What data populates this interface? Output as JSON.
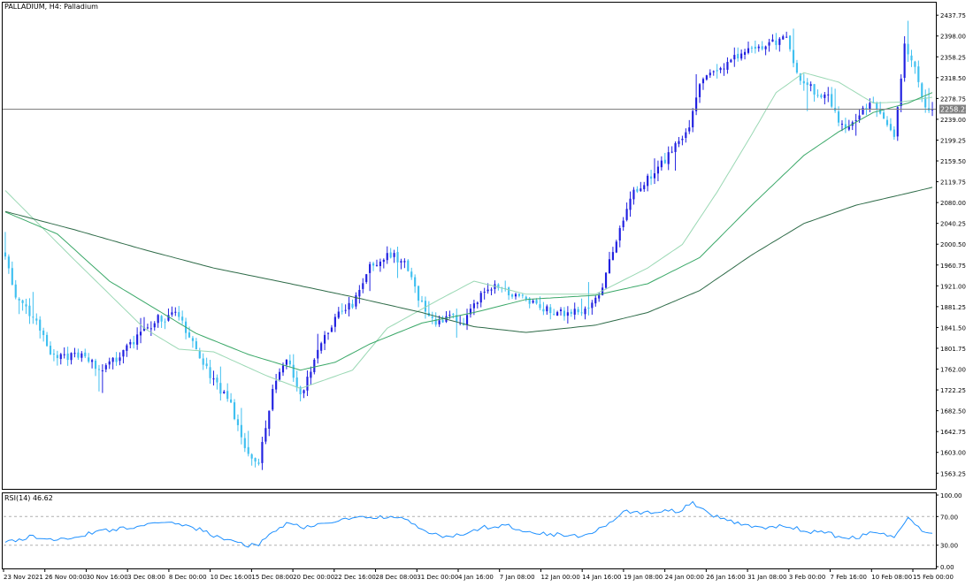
{
  "colors": {
    "background": "#ffffff",
    "frame": "#000000",
    "bull": "#2020e0",
    "bear": "#40c0f0",
    "ma_fast": "#9ad8b4",
    "ma_mid": "#3aa868",
    "ma_slow": "#2e6b48",
    "rsi": "#1e90ff",
    "price_line": "#808080",
    "price_tag_bg": "#808080",
    "price_tag_text": "#ffffff",
    "level_line": "#b0b0b0"
  },
  "chart_data": [
    {
      "type": "candlestick",
      "title": "PALLADIUM, H4:  Palladium",
      "ylim": [
        1535,
        2460
      ],
      "y_ticks": [
        "2437.75",
        "2398.00",
        "2358.25",
        "2318.50",
        "2278.75",
        "2239.00",
        "2199.25",
        "2159.50",
        "2119.75",
        "2080.00",
        "2040.25",
        "2000.50",
        "1960.75",
        "1921.00",
        "1881.25",
        "1841.50",
        "1801.75",
        "1762.00",
        "1722.25",
        "1682.50",
        "1642.75",
        "1603.00",
        "1563.25"
      ],
      "current_price": "2258.25",
      "x_labels": [
        "23 Nov 2021",
        "26 Nov 00:00",
        "30 Nov 16:00",
        "3 Dec 08:00",
        "8 Dec 00:00",
        "10 Dec 16:00",
        "15 Dec 08:00",
        "20 Dec 00:00",
        "22 Dec 16:00",
        "28 Dec 08:00",
        "31 Dec 00:00",
        "4 Jan 16:00",
        "7 Jan 08:00",
        "12 Jan 00:00",
        "14 Jan 16:00",
        "19 Jan 08:00",
        "24 Jan 00:00",
        "26 Jan 16:00",
        "31 Jan 08:00",
        "3 Feb 00:00",
        "7 Feb 16:00",
        "10 Feb 08:00",
        "15 Feb 00:00"
      ],
      "price_anchors": [
        [
          0,
          1985
        ],
        [
          3,
          1895
        ],
        [
          8,
          1862
        ],
        [
          14,
          1782
        ],
        [
          22,
          1790
        ],
        [
          28,
          1755
        ],
        [
          36,
          1810
        ],
        [
          44,
          1858
        ],
        [
          50,
          1865
        ],
        [
          55,
          1795
        ],
        [
          60,
          1742
        ],
        [
          65,
          1692
        ],
        [
          70,
          1598
        ],
        [
          73,
          1583
        ],
        [
          77,
          1720
        ],
        [
          81,
          1785
        ],
        [
          85,
          1708
        ],
        [
          90,
          1796
        ],
        [
          95,
          1862
        ],
        [
          100,
          1885
        ],
        [
          105,
          1955
        ],
        [
          110,
          1982
        ],
        [
          115,
          1968
        ],
        [
          119,
          1900
        ],
        [
          124,
          1848
        ],
        [
          128,
          1862
        ],
        [
          132,
          1848
        ],
        [
          137,
          1902
        ],
        [
          142,
          1922
        ],
        [
          147,
          1903
        ],
        [
          152,
          1890
        ],
        [
          157,
          1872
        ],
        [
          162,
          1869
        ],
        [
          167,
          1879
        ],
        [
          171,
          1903
        ],
        [
          176,
          2010
        ],
        [
          180,
          2090
        ],
        [
          186,
          2130
        ],
        [
          191,
          2170
        ],
        [
          197,
          2222
        ],
        [
          200,
          2310
        ],
        [
          205,
          2328
        ],
        [
          210,
          2362
        ],
        [
          215,
          2368
        ],
        [
          220,
          2382
        ],
        [
          225,
          2398
        ],
        [
          228,
          2325
        ],
        [
          233,
          2292
        ],
        [
          237,
          2280
        ],
        [
          241,
          2226
        ],
        [
          245,
          2239
        ],
        [
          249,
          2274
        ],
        [
          253,
          2245
        ],
        [
          256,
          2212
        ],
        [
          259,
          2380
        ],
        [
          262,
          2342
        ],
        [
          265,
          2258
        ],
        [
          267,
          2258.25
        ]
      ],
      "moving_averages": [
        {
          "key": "ma_fast",
          "values": [
            [
              0,
              2103
            ],
            [
              20,
              1970
            ],
            [
              40,
              1840
            ],
            [
              50,
              1800
            ],
            [
              60,
              1795
            ],
            [
              75,
              1750
            ],
            [
              85,
              1725
            ],
            [
              100,
              1760
            ],
            [
              110,
              1840
            ],
            [
              125,
              1895
            ],
            [
              135,
              1930
            ],
            [
              150,
              1905
            ],
            [
              170,
              1905
            ],
            [
              185,
              1955
            ],
            [
              195,
              2000
            ],
            [
              205,
              2100
            ],
            [
              215,
              2210
            ],
            [
              222,
              2290
            ],
            [
              230,
              2328
            ],
            [
              240,
              2310
            ],
            [
              250,
              2270
            ],
            [
              258,
              2272
            ],
            [
              267,
              2281
            ]
          ]
        },
        {
          "key": "ma_mid",
          "values": [
            [
              0,
              2062
            ],
            [
              15,
              2020
            ],
            [
              30,
              1930
            ],
            [
              45,
              1870
            ],
            [
              55,
              1830
            ],
            [
              70,
              1790
            ],
            [
              85,
              1760
            ],
            [
              95,
              1775
            ],
            [
              105,
              1810
            ],
            [
              120,
              1850
            ],
            [
              135,
              1870
            ],
            [
              150,
              1895
            ],
            [
              170,
              1903
            ],
            [
              185,
              1925
            ],
            [
              200,
              1975
            ],
            [
              215,
              2075
            ],
            [
              230,
              2170
            ],
            [
              240,
              2215
            ],
            [
              250,
              2252
            ],
            [
              260,
              2270
            ],
            [
              267,
              2290
            ]
          ]
        },
        {
          "key": "ma_slow",
          "values": [
            [
              0,
              2063
            ],
            [
              20,
              2028
            ],
            [
              40,
              1990
            ],
            [
              60,
              1955
            ],
            [
              80,
              1928
            ],
            [
              100,
              1900
            ],
            [
              120,
              1870
            ],
            [
              135,
              1843
            ],
            [
              150,
              1832
            ],
            [
              170,
              1846
            ],
            [
              185,
              1870
            ],
            [
              200,
              1912
            ],
            [
              215,
              1980
            ],
            [
              230,
              2040
            ],
            [
              245,
              2075
            ],
            [
              260,
              2098
            ],
            [
              267,
              2109
            ]
          ]
        }
      ]
    },
    {
      "type": "line",
      "title": "RSI(14) 46.62",
      "ylim": [
        0,
        100
      ],
      "y_ticks": [
        "100.00",
        "70.00",
        "30.00",
        "0.00"
      ],
      "levels": [
        30,
        70
      ],
      "anchors": [
        [
          0,
          34
        ],
        [
          8,
          42
        ],
        [
          15,
          38
        ],
        [
          22,
          44
        ],
        [
          30,
          51
        ],
        [
          40,
          58
        ],
        [
          50,
          61
        ],
        [
          56,
          52
        ],
        [
          62,
          39
        ],
        [
          70,
          30
        ],
        [
          73,
          30
        ],
        [
          77,
          50
        ],
        [
          82,
          61
        ],
        [
          86,
          53
        ],
        [
          92,
          62
        ],
        [
          100,
          67
        ],
        [
          110,
          70
        ],
        [
          116,
          64
        ],
        [
          122,
          46
        ],
        [
          128,
          42
        ],
        [
          132,
          45
        ],
        [
          138,
          55
        ],
        [
          145,
          57
        ],
        [
          152,
          48
        ],
        [
          158,
          45
        ],
        [
          165,
          43
        ],
        [
          172,
          54
        ],
        [
          178,
          77
        ],
        [
          186,
          75
        ],
        [
          194,
          78
        ],
        [
          198,
          88
        ],
        [
          203,
          72
        ],
        [
          210,
          62
        ],
        [
          218,
          55
        ],
        [
          225,
          56
        ],
        [
          232,
          49
        ],
        [
          238,
          45
        ],
        [
          242,
          39
        ],
        [
          246,
          42
        ],
        [
          250,
          48
        ],
        [
          256,
          40
        ],
        [
          260,
          67
        ],
        [
          263,
          57
        ],
        [
          265,
          47
        ],
        [
          267,
          46.62
        ]
      ]
    }
  ]
}
